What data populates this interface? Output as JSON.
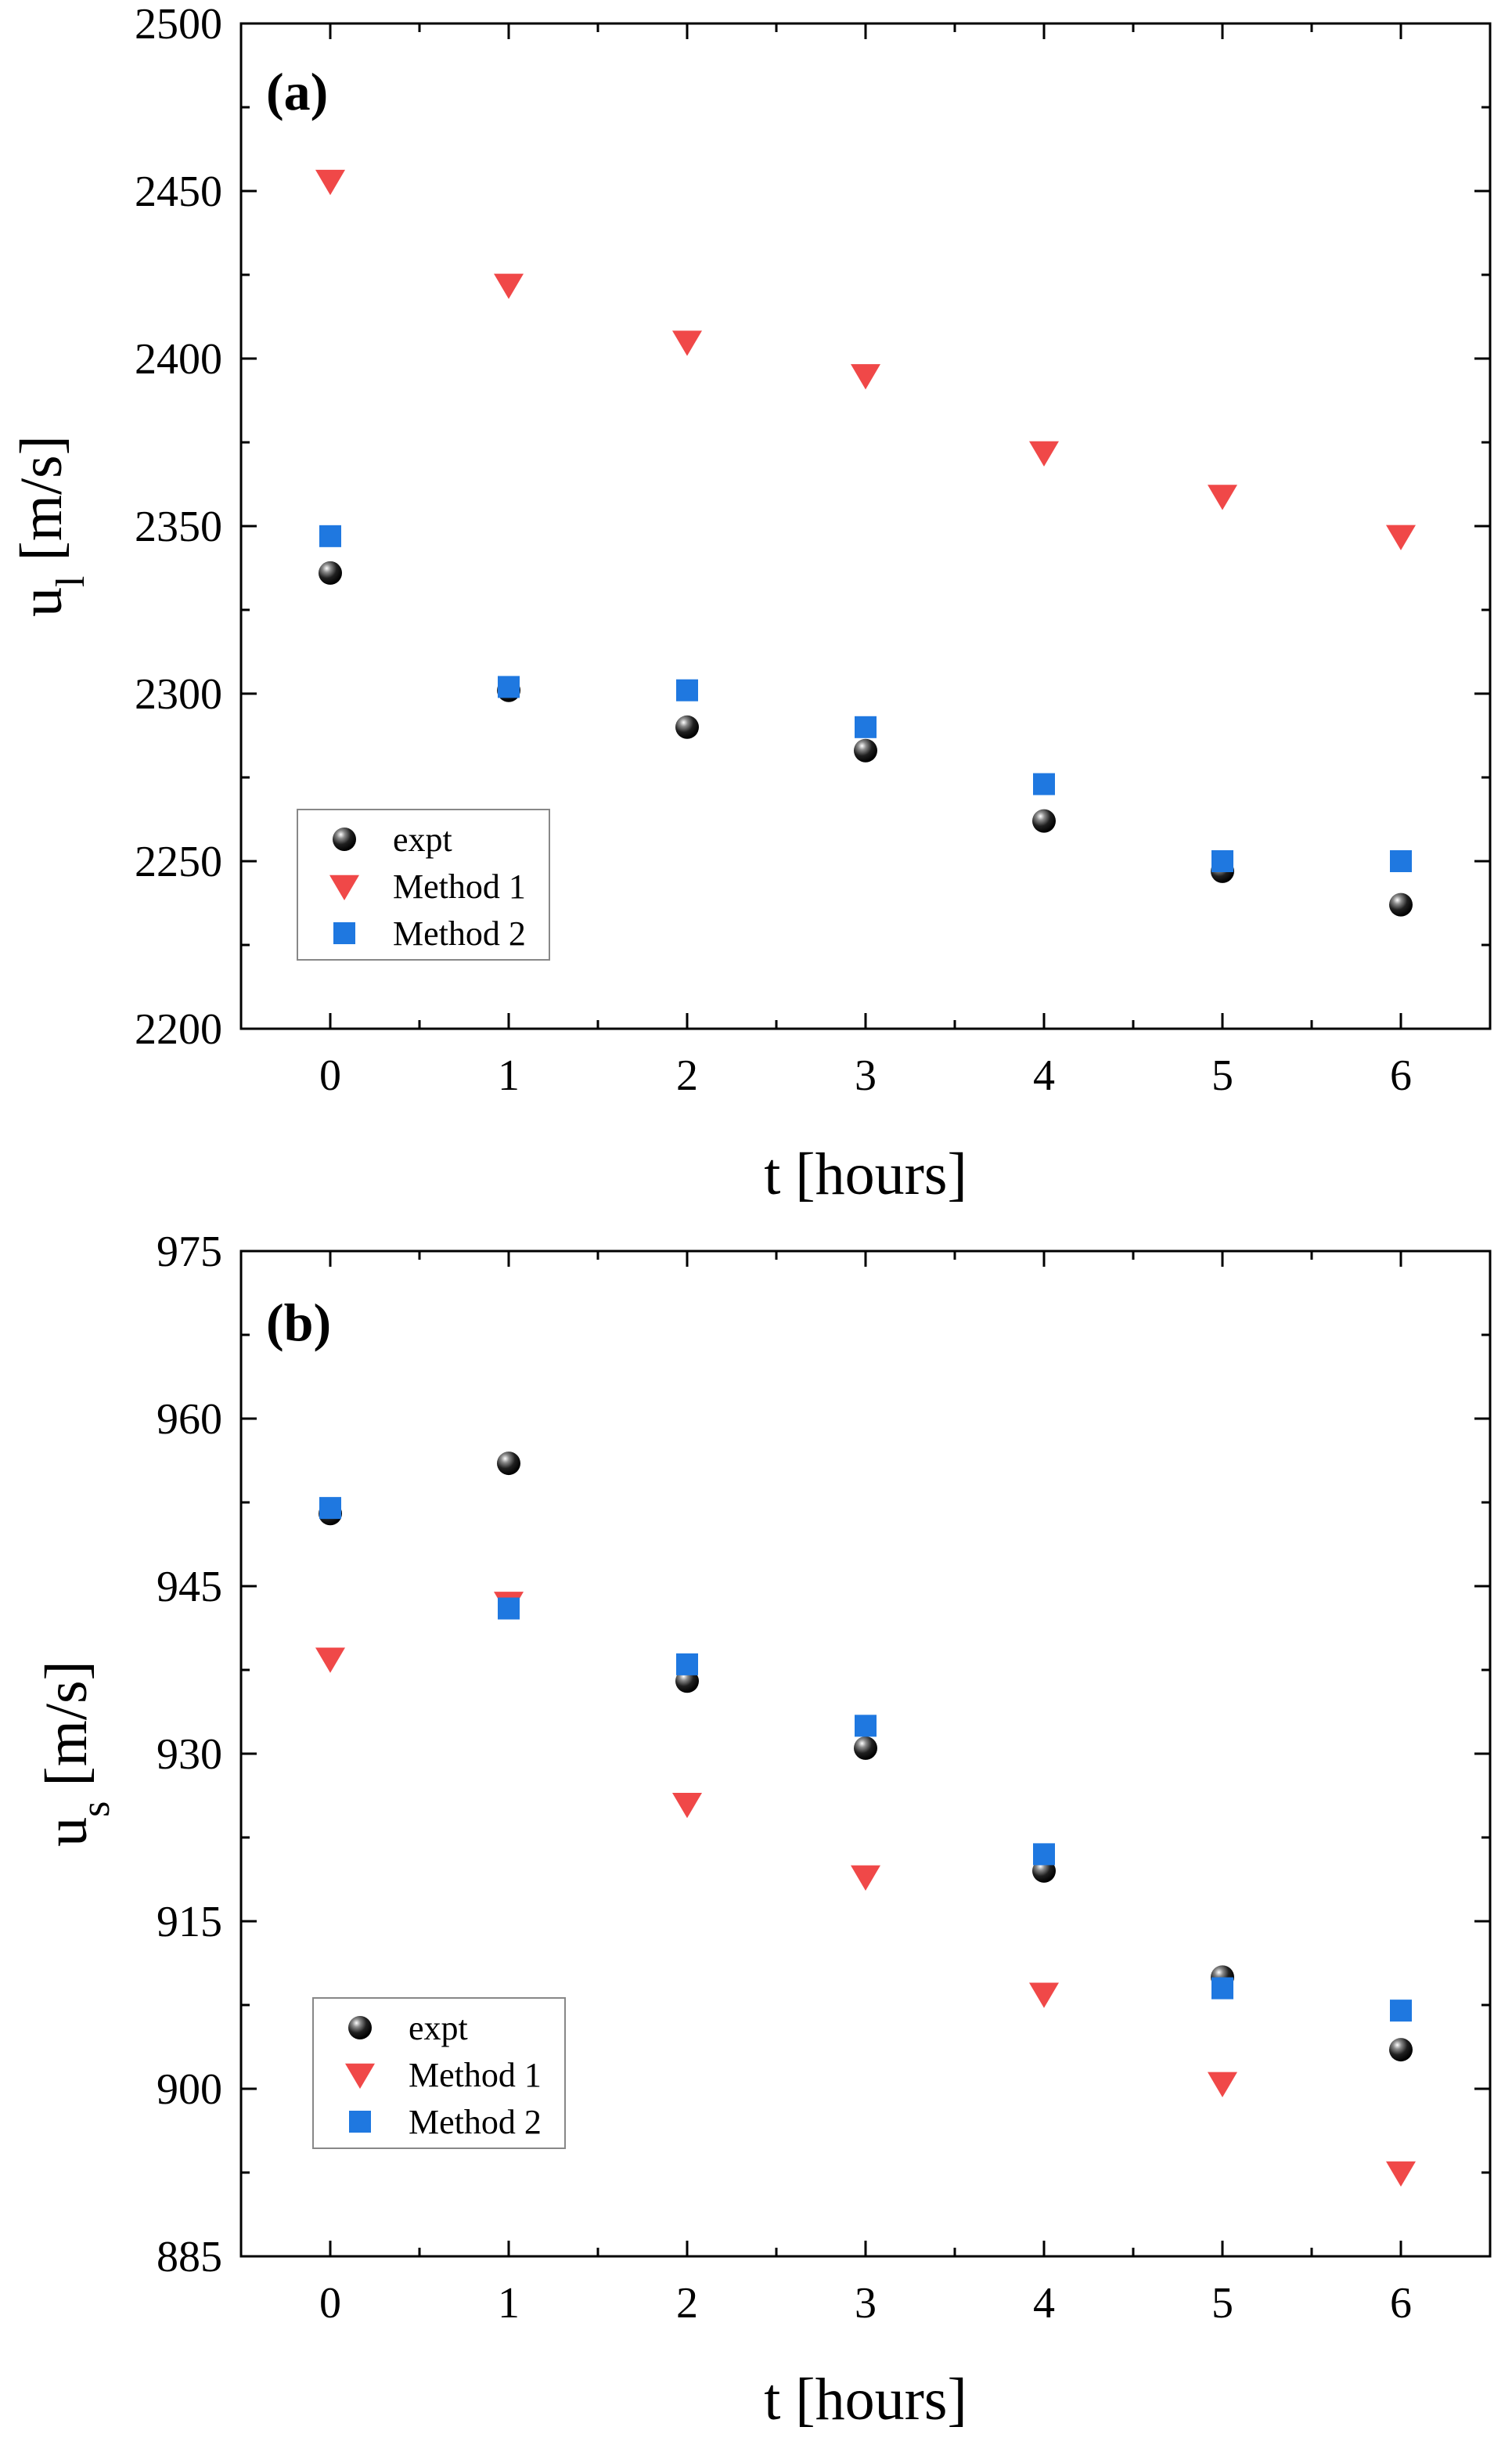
{
  "chart_data": [
    {
      "type": "scatter",
      "panel_label": "(a)",
      "title": "",
      "xlabel": "t [hours]",
      "ylabel": "u",
      "ylabel_sub": "l",
      "ylabel_unit": " [m/s]",
      "xlim": [
        -0.5,
        6.5
      ],
      "ylim": [
        2200,
        2500
      ],
      "xticks": [
        0,
        1,
        2,
        3,
        4,
        5,
        6
      ],
      "yticks": [
        2200,
        2250,
        2300,
        2350,
        2400,
        2450,
        2500
      ],
      "legend_position": "bottom-left",
      "series": [
        {
          "name": "expt",
          "marker": "sphere",
          "color": "#111111",
          "x": [
            0,
            1,
            2,
            3,
            4,
            5,
            6
          ],
          "values": [
            2336,
            2301,
            2290,
            2283,
            2262,
            2247,
            2237
          ]
        },
        {
          "name": "Method 1",
          "marker": "triangle-down",
          "color": "#f04848",
          "x": [
            0,
            1,
            2,
            3,
            4,
            5,
            6
          ],
          "values": [
            2453,
            2422,
            2405,
            2395,
            2372,
            2359,
            2347
          ]
        },
        {
          "name": "Method 2",
          "marker": "square",
          "color": "#1f78e0",
          "x": [
            0,
            1,
            2,
            3,
            4,
            5,
            6
          ],
          "values": [
            2347,
            2302,
            2301,
            2290,
            2273,
            2250,
            2250
          ]
        }
      ]
    },
    {
      "type": "scatter",
      "panel_label": "(b)",
      "title": "",
      "xlabel": "t [hours]",
      "ylabel": "u",
      "ylabel_sub": "s",
      "ylabel_unit": " [m/s]",
      "xlim": [
        -0.5,
        6.5
      ],
      "ylim": [
        885,
        975
      ],
      "xticks": [
        0,
        1,
        2,
        3,
        4,
        5,
        6
      ],
      "yticks": [
        885,
        900,
        915,
        930,
        945,
        960,
        975
      ],
      "legend_position": "bottom-left",
      "series": [
        {
          "name": "expt",
          "marker": "sphere",
          "color": "#111111",
          "x": [
            0,
            1,
            2,
            3,
            4,
            5,
            6
          ],
          "values": [
            951.5,
            956,
            936.5,
            930.5,
            919.5,
            910,
            903.5
          ]
        },
        {
          "name": "Method 1",
          "marker": "triangle-down",
          "color": "#f04848",
          "x": [
            0,
            1,
            2,
            3,
            4,
            5,
            6
          ],
          "values": [
            938.5,
            943.5,
            925.5,
            919,
            908.5,
            900.5,
            892.5
          ]
        },
        {
          "name": "Method 2",
          "marker": "square",
          "color": "#1f78e0",
          "x": [
            0,
            1,
            2,
            3,
            4,
            5,
            6
          ],
          "values": [
            952,
            943,
            938,
            932.5,
            921,
            909,
            907
          ]
        }
      ]
    }
  ]
}
